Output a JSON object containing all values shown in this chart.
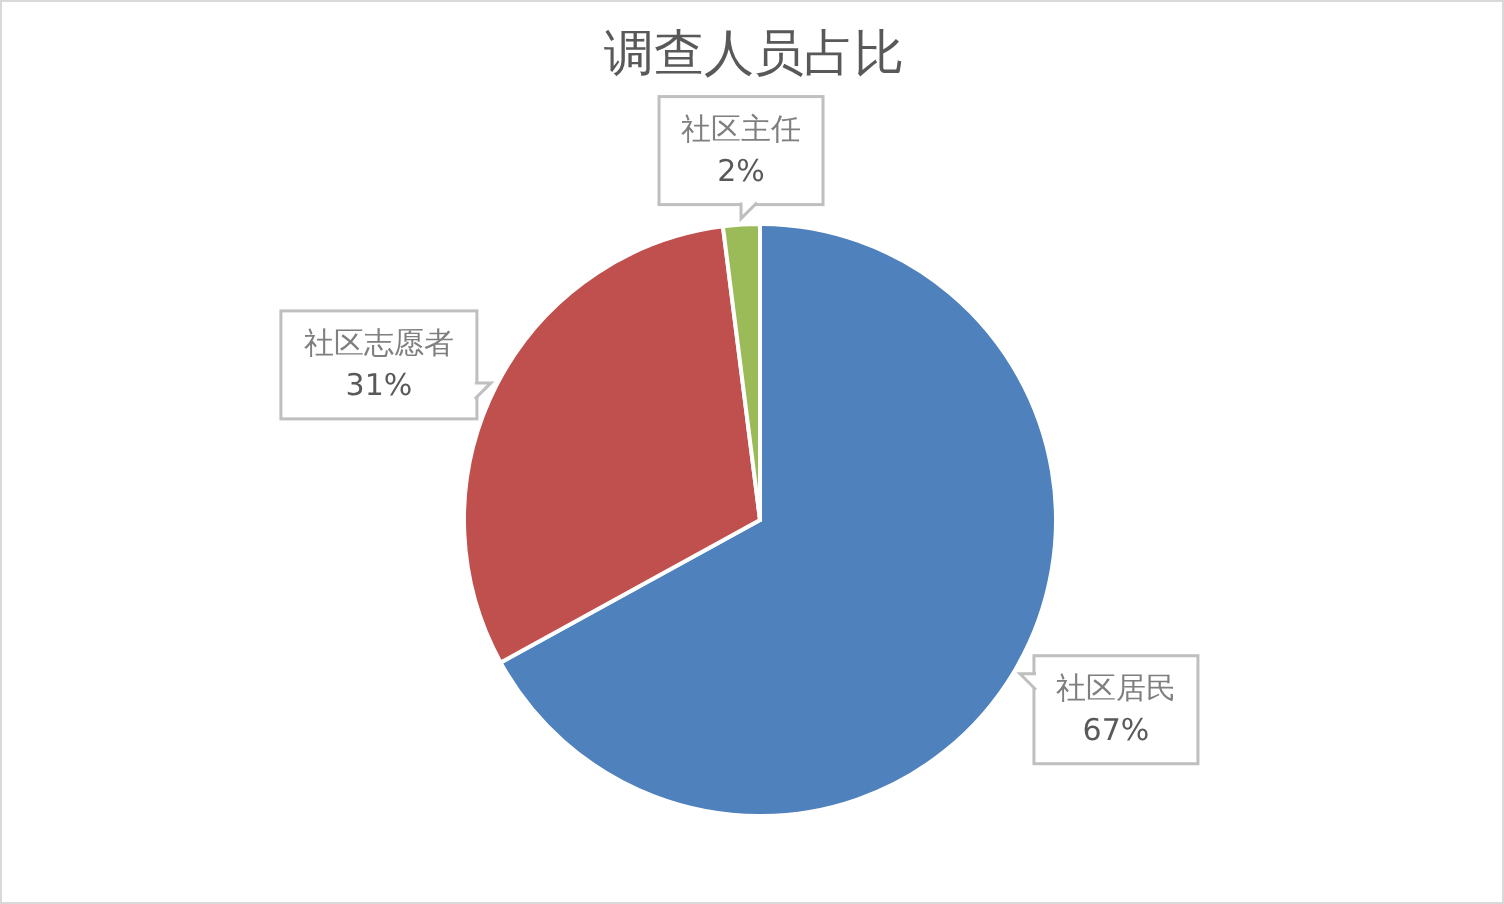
{
  "chart_data": {
    "type": "pie",
    "title": "调查人员占比",
    "categories": [
      "社区居民",
      "社区志愿者",
      "社区主任"
    ],
    "values": [
      67,
      31,
      2
    ],
    "colors": [
      "#4f81bd",
      "#c0504d",
      "#9bbb59"
    ],
    "value_labels": [
      "67%",
      "31%",
      "2%"
    ]
  }
}
